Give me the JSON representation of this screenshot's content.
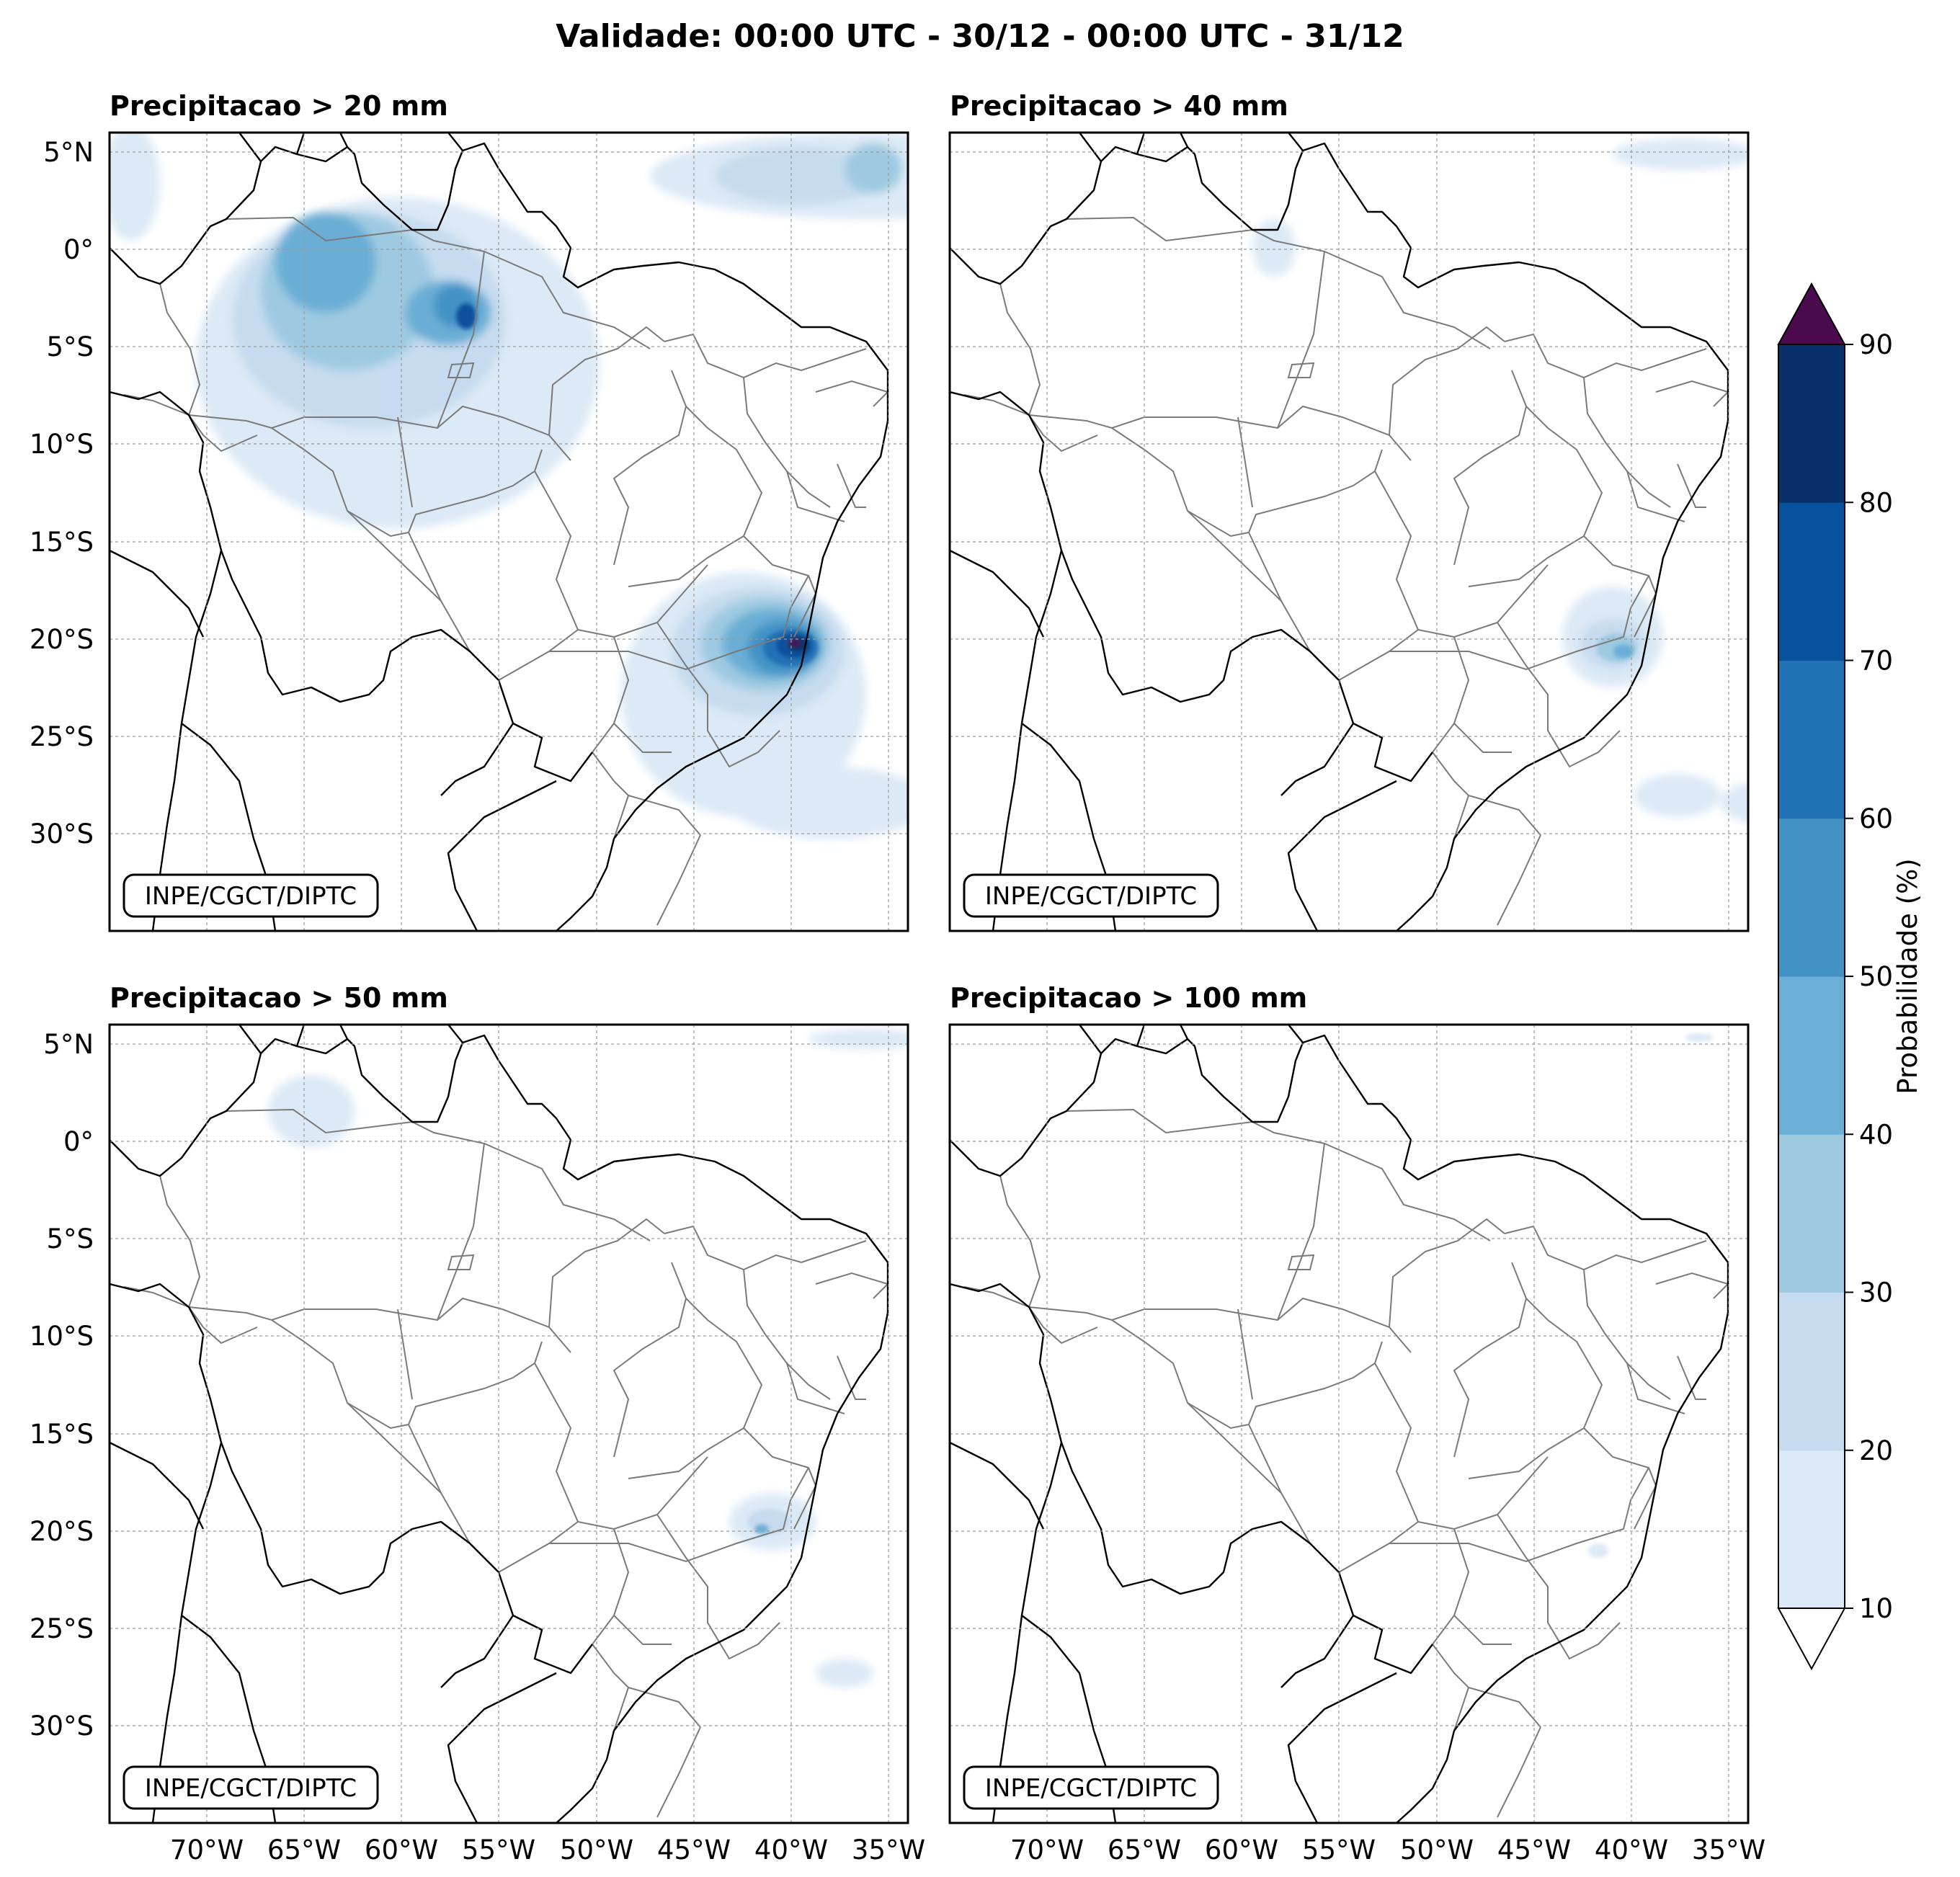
{
  "figure": {
    "title": "Validade: 00:00 UTC - 30/12 - 00:00 UTC - 31/12"
  },
  "axes": {
    "lat_ticks": [
      "5°N",
      "0°",
      "5°S",
      "10°S",
      "15°S",
      "20°S",
      "25°S",
      "30°S"
    ],
    "lon_ticks": [
      "70°W",
      "65°W",
      "60°W",
      "55°W",
      "50°W",
      "45°W",
      "40°W",
      "35°W"
    ],
    "lat_range": [
      6,
      -35
    ],
    "lon_range": [
      -75,
      -34
    ]
  },
  "panels": [
    {
      "title": "Precipitacao > 20 mm",
      "credit": "INPE/CGCT/DIPTC"
    },
    {
      "title": "Precipitacao > 40 mm",
      "credit": "INPE/CGCT/DIPTC"
    },
    {
      "title": "Precipitacao > 50 mm",
      "credit": "INPE/CGCT/DIPTC"
    },
    {
      "title": "Precipitacao > 100 mm",
      "credit": "INPE/CGCT/DIPTC"
    }
  ],
  "colorbar": {
    "label": "Probabilidade (%)",
    "ticks": [
      "10",
      "20",
      "30",
      "40",
      "50",
      "60",
      "70",
      "80",
      "90"
    ],
    "colors": [
      "#dce9f6",
      "#c6dbef",
      "#9ecae1",
      "#6baed6",
      "#4292c6",
      "#2171b5",
      "#08519c",
      "#08306b"
    ],
    "over_color": "#4a0a4d",
    "under_color": "#ffffff"
  },
  "palette": {
    "coast": "#000000",
    "state_border": "#7a7a7a",
    "grid": "#9a9a9a"
  }
}
